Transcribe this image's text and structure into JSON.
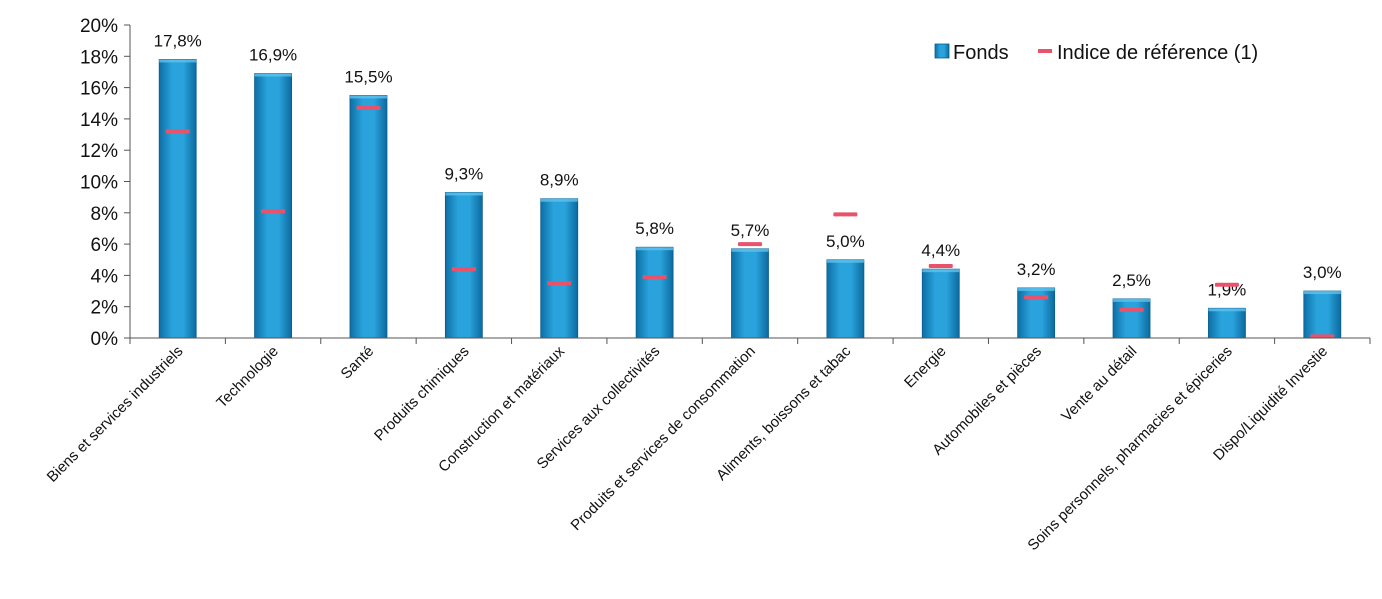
{
  "chart_data": {
    "type": "bar",
    "categories": [
      "Biens et services industriels",
      "Technologie",
      "Santé",
      "Produits chimiques",
      "Construction et matériaux",
      "Services aux collectivités",
      "Produits et services de consommation",
      "Aliments, boissons et tabac",
      "Energie",
      "Automobiles et pièces",
      "Vente au détail",
      "Soins personnels, pharmacies et épiceries",
      "Dispo/Liquidité Investie"
    ],
    "series": [
      {
        "name": "Fonds",
        "type": "bar",
        "color": "#1a8fc9",
        "values": [
          17.8,
          16.9,
          15.5,
          9.3,
          8.9,
          5.8,
          5.7,
          5.0,
          4.4,
          3.2,
          2.5,
          1.9,
          3.0
        ],
        "data_labels": [
          "17,8%",
          "16,9%",
          "15,5%",
          "9,3%",
          "8,9%",
          "5,8%",
          "5,7%",
          "5,0%",
          "4,4%",
          "3,2%",
          "2,5%",
          "1,9%",
          "3,0%"
        ]
      },
      {
        "name": "Indice de référence (1)",
        "type": "marker",
        "color": "#e8536b",
        "values": [
          13.2,
          8.1,
          14.7,
          4.4,
          3.5,
          3.9,
          6.0,
          7.9,
          4.6,
          2.6,
          1.8,
          3.4,
          0.1
        ]
      }
    ],
    "ylim": [
      0,
      20
    ],
    "yticks": [
      "0%",
      "2%",
      "4%",
      "6%",
      "8%",
      "10%",
      "12%",
      "14%",
      "16%",
      "18%",
      "20%"
    ],
    "ytick_values": [
      0,
      2,
      4,
      6,
      8,
      10,
      12,
      14,
      16,
      18,
      20
    ],
    "legend_position": "top-right",
    "grid": false
  }
}
